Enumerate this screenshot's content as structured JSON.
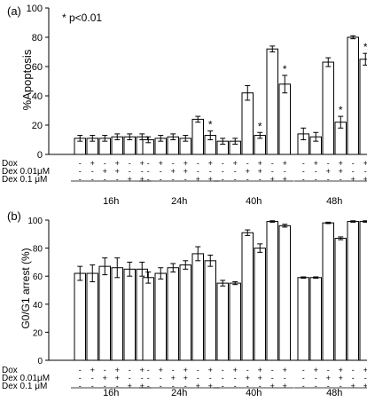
{
  "chart_data": [
    {
      "type": "bar",
      "panel_label": "(a)",
      "ylabel": "%Apoptosis",
      "ylim": [
        0,
        100
      ],
      "yticks": [
        0,
        20,
        40,
        60,
        80,
        100
      ],
      "annotation": "* p<0.01",
      "grid": false,
      "groups": [
        {
          "label": "16h",
          "values": [
            11,
            11,
            11,
            12,
            12,
            12
          ],
          "errors": [
            2,
            2,
            2,
            2,
            2,
            2
          ],
          "stars": [
            false,
            false,
            false,
            false,
            false,
            false
          ]
        },
        {
          "label": "24h",
          "values": [
            10,
            11,
            12,
            11,
            24,
            13
          ],
          "errors": [
            2,
            2,
            2,
            2,
            2,
            3
          ],
          "stars": [
            false,
            false,
            false,
            false,
            false,
            true
          ]
        },
        {
          "label": "40h",
          "values": [
            9,
            9,
            42,
            13,
            72,
            48
          ],
          "errors": [
            2,
            2,
            5,
            2,
            2,
            6
          ],
          "stars": [
            false,
            false,
            false,
            true,
            false,
            true
          ]
        },
        {
          "label": "48h",
          "values": [
            14,
            12,
            63,
            22,
            80,
            65
          ],
          "errors": [
            4,
            3,
            3,
            4,
            1,
            4
          ],
          "stars": [
            false,
            false,
            false,
            true,
            false,
            true
          ]
        }
      ]
    },
    {
      "type": "bar",
      "panel_label": "(b)",
      "ylabel": "G0/G1 arrest (%)",
      "ylim": [
        0,
        100
      ],
      "yticks": [
        0,
        20,
        40,
        60,
        80,
        100
      ],
      "grid": false,
      "groups": [
        {
          "label": "16h",
          "values": [
            62,
            62,
            67,
            66,
            65,
            65
          ],
          "errors": [
            5,
            6,
            6,
            7,
            5,
            5
          ]
        },
        {
          "label": "24h",
          "values": [
            59,
            62,
            66,
            68,
            76,
            71
          ],
          "errors": [
            4,
            4,
            3,
            3,
            5,
            4
          ]
        },
        {
          "label": "40h",
          "values": [
            55,
            55,
            91,
            80,
            99,
            96
          ],
          "errors": [
            2,
            1,
            2,
            3,
            0.5,
            1
          ]
        },
        {
          "label": "48h",
          "values": [
            59,
            59,
            98,
            87,
            99,
            99
          ],
          "errors": [
            0.5,
            0.5,
            0.5,
            1,
            0.5,
            0.5
          ]
        }
      ]
    }
  ],
  "condition_table": {
    "rows": [
      {
        "label": "Dox",
        "signs": [
          "-",
          "+",
          "-",
          "+",
          "-",
          "+"
        ]
      },
      {
        "label": "Dex 0.01μM",
        "signs": [
          "-",
          "-",
          "+",
          "+",
          "-",
          "-"
        ]
      },
      {
        "label": "Dex  0.1 μM",
        "signs": [
          "-",
          "-",
          "-",
          "-",
          "+",
          "+"
        ]
      }
    ]
  }
}
